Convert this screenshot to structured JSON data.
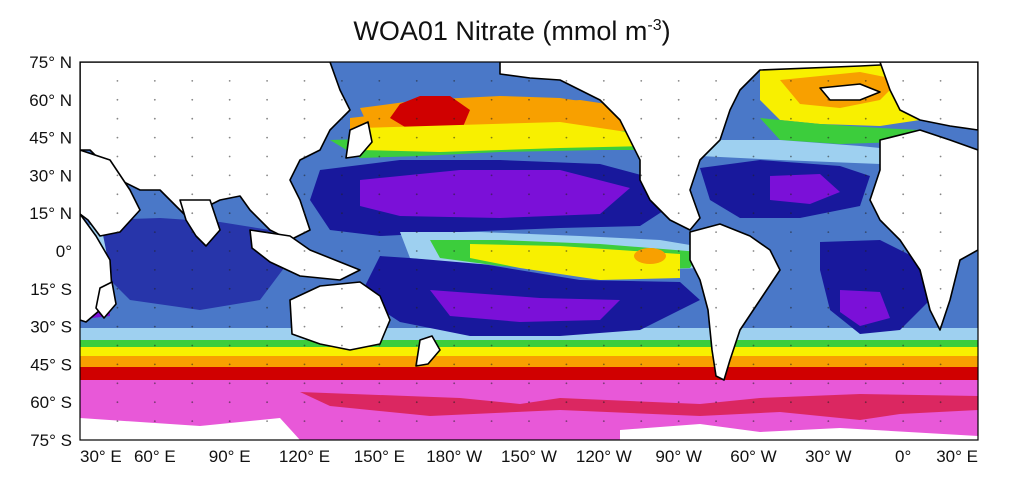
{
  "title": {
    "text": "WOA01 Nitrate (mmol m",
    "exponent": "-3",
    "close": ")"
  },
  "axes": {
    "lat_ticks": [
      "75° N",
      "60° N",
      "45° N",
      "30° N",
      "15° N",
      "0°",
      "15° S",
      "30° S",
      "45° S",
      "60° S",
      "75° S"
    ],
    "lon_ticks": [
      "30° E",
      "60° E",
      "90° E",
      "120° E",
      "150° E",
      "180° W",
      "150° W",
      "120° W",
      "90° W",
      "60° W",
      "30° W",
      "0°",
      "30° E"
    ],
    "lat_range": [
      -75,
      75
    ],
    "lon_range": [
      "30 E",
      "30 E"
    ]
  },
  "colormap": {
    "very_low": "#7b10d8",
    "low": "#18189c",
    "low_mid": "#4a78c8",
    "mid_low": "#9ed0f0",
    "mid": "#3ccd3c",
    "mid_high": "#f8f000",
    "high": "#f8a000",
    "very_high": "#d00000",
    "highest": "#e858d8",
    "land": "#ffffff"
  }
}
